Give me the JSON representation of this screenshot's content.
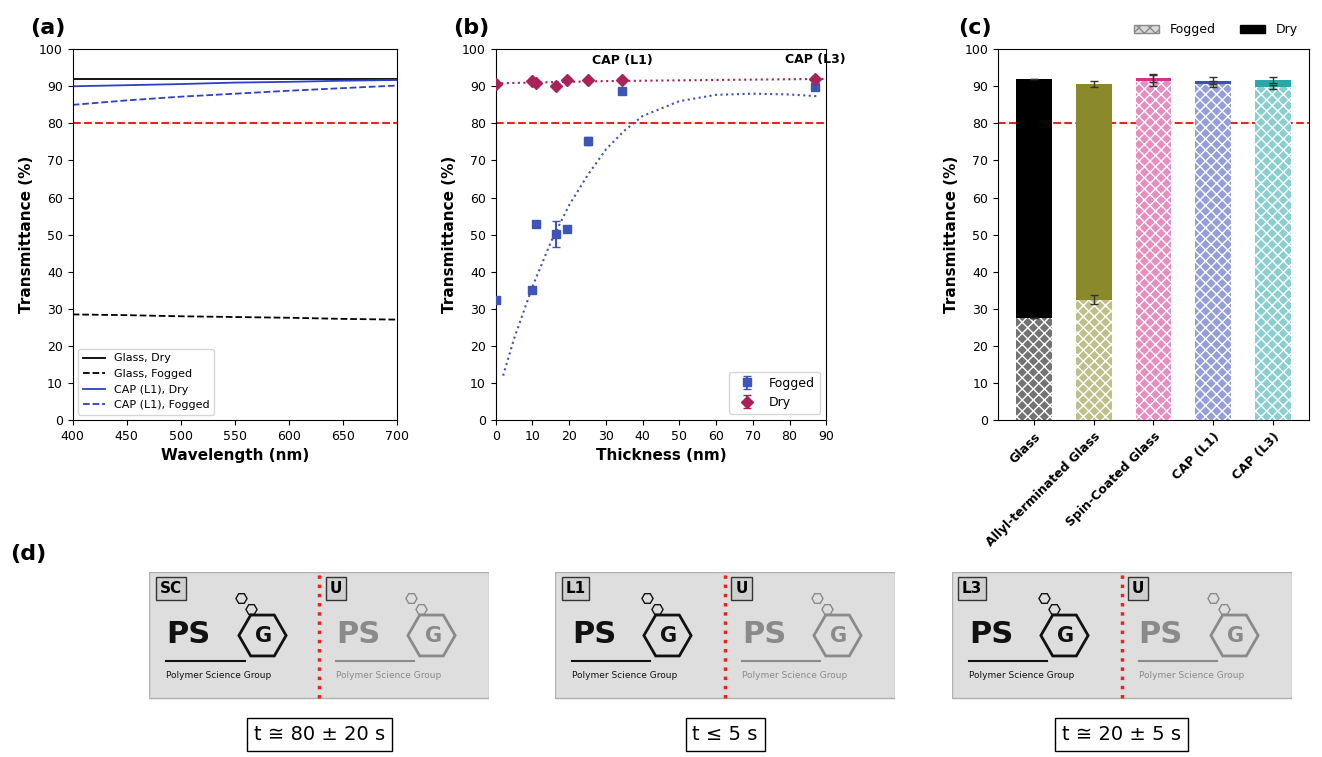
{
  "chart_data": [
    {
      "type": "line",
      "title": "(a)",
      "x_label": "Wavelength (nm)",
      "y_label": "Transmittance (%)",
      "x": [
        400,
        450,
        500,
        550,
        600,
        650,
        700
      ],
      "xlim": [
        400,
        700
      ],
      "xticks": [
        400,
        450,
        500,
        550,
        600,
        650,
        700
      ],
      "ylim": [
        0,
        100
      ],
      "yticks": [
        0,
        10,
        20,
        30,
        40,
        50,
        60,
        70,
        80,
        90,
        100
      ],
      "grid": false,
      "legend": "lower left",
      "reference_line": 80,
      "series": [
        {
          "name": "Glass, Dry",
          "color": "#000000",
          "line_style": "solid",
          "values": [
            92,
            92,
            92,
            92,
            92,
            92,
            92
          ]
        },
        {
          "name": "Glass, Fogged",
          "color": "#000000",
          "line_style": "dashed",
          "values": [
            28.5,
            28.3,
            28,
            27.8,
            27.6,
            27.3,
            27.1
          ]
        },
        {
          "name": "CAP (L1), Dry",
          "color": "#2e40c4",
          "line_style": "solid",
          "values": [
            90,
            90.3,
            90.6,
            91,
            91.2,
            91.5,
            91.7
          ]
        },
        {
          "name": "CAP (L1), Fogged",
          "color": "#2e40c4",
          "line_style": "dashed",
          "values": [
            85,
            86.2,
            87.2,
            88,
            88.8,
            89.5,
            90.2
          ]
        }
      ]
    },
    {
      "type": "scatter",
      "title": "(b)",
      "x_label": "Thickness (nm)",
      "y_label": "Transmittance (%)",
      "xlim": [
        0,
        90
      ],
      "xticks": [
        0,
        10,
        20,
        30,
        40,
        50,
        60,
        70,
        80,
        90
      ],
      "ylim": [
        0,
        100
      ],
      "yticks": [
        0,
        10,
        20,
        30,
        40,
        50,
        60,
        70,
        80,
        90,
        100
      ],
      "grid": false,
      "legend": "lower right",
      "reference_line": 80,
      "annotations": [
        {
          "text": "CAP (L1)",
          "x": 34.5
        },
        {
          "text": "CAP (L3)",
          "x": 87
        }
      ],
      "series": [
        {
          "name": "Fogged",
          "type": "scatter",
          "marker": "square",
          "color": "#3d55b8",
          "x": [
            0,
            9.8,
            11,
            16.5,
            19.5,
            25,
            34.5,
            87
          ],
          "values": [
            32.5,
            35,
            52.8,
            50.3,
            51.5,
            75.3,
            88.7,
            89.8
          ],
          "error": [
            0,
            0,
            0,
            3.5,
            0,
            1,
            0.5,
            0.5
          ]
        },
        {
          "name": "Dry",
          "type": "scatter",
          "marker": "diamond",
          "color": "#a8235a",
          "x": [
            0,
            9.8,
            11,
            16.5,
            19.5,
            25,
            34.5,
            87
          ],
          "values": [
            90.5,
            91.5,
            91,
            90,
            91.8,
            91.8,
            91.8,
            92
          ],
          "error": [
            0,
            0,
            0,
            0,
            0,
            0,
            0,
            0
          ]
        },
        {
          "type": "line",
          "line_style": "dotted",
          "color": "#3d55b8",
          "x": [
            2,
            5,
            10,
            15,
            20,
            25,
            30,
            35,
            40,
            50,
            60,
            70,
            80,
            88
          ],
          "values": [
            12,
            22,
            36,
            48,
            58,
            66,
            73,
            78,
            82,
            86,
            87.7,
            88,
            87.8,
            87.3
          ]
        },
        {
          "type": "line",
          "line_style": "dotted",
          "color": "#a8235a",
          "x": [
            0,
            10,
            20,
            30,
            40,
            50,
            60,
            70,
            80,
            90
          ],
          "values": [
            90.8,
            91.0,
            91.2,
            91.4,
            91.5,
            91.6,
            91.7,
            91.8,
            91.9,
            92
          ]
        }
      ]
    },
    {
      "type": "bar",
      "title": "(c)",
      "y_label": "Transmittance (%)",
      "categories": [
        "Glass",
        "Allyl-terminated Glass",
        "Spin-Coated Glass",
        "CAP (L1)",
        "CAP (L3)"
      ],
      "colors": [
        "#000000",
        "#8b8a2a",
        "#d6308a",
        "#3d4fb8",
        "#2aa8a8"
      ],
      "ylim": [
        0,
        100
      ],
      "yticks": [
        0,
        10,
        20,
        30,
        40,
        50,
        60,
        70,
        80,
        90,
        100
      ],
      "grid": false,
      "legend": "upper right",
      "stacked": false,
      "reference_line": 80,
      "series": [
        {
          "name": "Fogged",
          "color": "#d9d9d9",
          "values": [
            27.5,
            32.5,
            91.5,
            90.5,
            89.8
          ],
          "error": [
            0,
            1.2,
            1.5,
            0.8,
            0.5
          ]
        },
        {
          "name": "Dry",
          "color": "#000000",
          "values": [
            92,
            90.5,
            92.2,
            91.5,
            91.7
          ],
          "error": [
            0,
            0.8,
            1,
            1,
            0.8
          ]
        }
      ]
    }
  ],
  "panel_d": {
    "label": "(d)",
    "logo": {
      "letters": "PS",
      "mark": "G",
      "caption": "Polymer Science Group"
    },
    "photos": [
      {
        "treated": "SC",
        "untreated": "U",
        "time": "t ≅ 80 ± 20 s"
      },
      {
        "treated": "L1",
        "untreated": "U",
        "time": "t ≤ 5 s"
      },
      {
        "treated": "L3",
        "untreated": "U",
        "time": "t ≅ 20 ± 5 s"
      }
    ]
  }
}
